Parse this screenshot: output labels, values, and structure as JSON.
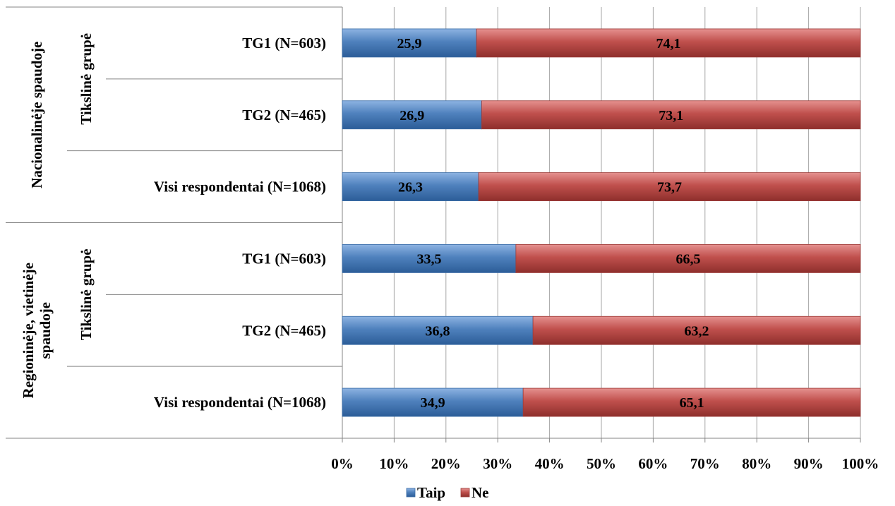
{
  "chart_data": {
    "type": "bar",
    "orientation": "horizontal",
    "stacked": "percent",
    "categories": [
      "TG1 (N=603)",
      "TG2 (N=465)",
      "Visi respondentai (N=1068)",
      "TG1 (N=603)",
      "TG2 (N=465)",
      "Visi respondentai (N=1068)"
    ],
    "outer_groups": [
      {
        "label": "Nacionalinėje spaudoje",
        "categories": [
          0,
          1,
          2
        ],
        "subgroups": [
          {
            "label": "Tikslinė grupė",
            "categories": [
              0,
              1
            ]
          }
        ]
      },
      {
        "label_lines": [
          "Regioninėje, vietinėje",
          "spaudoje"
        ],
        "categories": [
          3,
          4,
          5
        ],
        "subgroups": [
          {
            "label": "Tikslinė grupė",
            "categories": [
              3,
              4
            ]
          }
        ]
      }
    ],
    "series": [
      {
        "name": "Taip",
        "color": "#4a7ebb",
        "values": [
          25.9,
          26.9,
          26.3,
          33.5,
          36.8,
          34.9
        ],
        "labels": [
          "25,9",
          "26,9",
          "26,3",
          "33,5",
          "36,8",
          "34,9"
        ]
      },
      {
        "name": "Ne",
        "color": "#be4b48",
        "values": [
          74.1,
          73.1,
          73.7,
          66.5,
          63.2,
          65.1
        ],
        "labels": [
          "74,1",
          "73,1",
          "73,7",
          "66,5",
          "63,2",
          "65,1"
        ]
      }
    ],
    "xlim": [
      0,
      100
    ],
    "x_ticks": [
      "0%",
      "10%",
      "20%",
      "30%",
      "40%",
      "50%",
      "60%",
      "70%",
      "80%",
      "90%",
      "100%"
    ],
    "grid": true,
    "legend_position": "bottom"
  }
}
